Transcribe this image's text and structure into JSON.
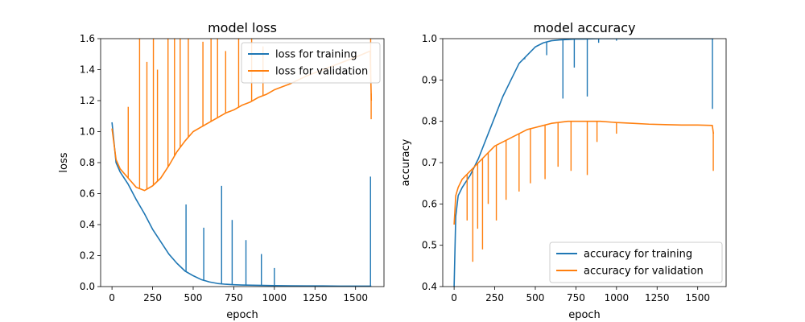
{
  "chart_data": [
    {
      "type": "line",
      "title": "model loss",
      "xlabel": "epoch",
      "ylabel": "loss",
      "xlim": [
        -70,
        1675
      ],
      "ylim": [
        0.0,
        1.6
      ],
      "xticks": [
        0,
        250,
        500,
        750,
        1000,
        1250,
        1500
      ],
      "yticks": [
        0.0,
        0.2,
        0.4,
        0.6,
        0.8,
        1.0,
        1.2,
        1.4,
        1.6
      ],
      "xtick_labels": [
        "0",
        "250",
        "500",
        "750",
        "1000",
        "1250",
        "1500"
      ],
      "ytick_labels": [
        "0.0",
        "0.2",
        "0.4",
        "0.6",
        "0.8",
        "1.0",
        "1.2",
        "1.4",
        "1.6"
      ],
      "legend_position": "top-right",
      "grid": false,
      "series": [
        {
          "name": "loss for training",
          "color": "#1f77b4",
          "x": [
            0,
            25,
            50,
            100,
            150,
            200,
            250,
            300,
            350,
            400,
            450,
            500,
            550,
            600,
            650,
            700,
            750,
            800,
            900,
            1000,
            1100,
            1200,
            1300,
            1400,
            1500,
            1590,
            1597
          ],
          "y": [
            1.06,
            0.8,
            0.74,
            0.66,
            0.56,
            0.47,
            0.37,
            0.29,
            0.21,
            0.15,
            0.1,
            0.07,
            0.045,
            0.03,
            0.02,
            0.015,
            0.012,
            0.01,
            0.008,
            0.006,
            0.005,
            0.004,
            0.004,
            0.003,
            0.003,
            0.003,
            0.003
          ],
          "spikes": [
            {
              "x": 456,
              "y": 0.53
            },
            {
              "x": 565,
              "y": 0.38
            },
            {
              "x": 675,
              "y": 0.65
            },
            {
              "x": 740,
              "y": 0.43
            },
            {
              "x": 825,
              "y": 0.3
            },
            {
              "x": 920,
              "y": 0.21
            },
            {
              "x": 1000,
              "y": 0.12
            },
            {
              "x": 1592,
              "y": 0.71
            }
          ]
        },
        {
          "name": "loss for validation",
          "color": "#ff7f0e",
          "x": [
            0,
            25,
            50,
            100,
            150,
            200,
            250,
            300,
            350,
            400,
            450,
            500,
            550,
            600,
            650,
            700,
            750,
            800,
            850,
            900,
            950,
            1000,
            1100,
            1200,
            1300,
            1400,
            1500,
            1590,
            1597
          ],
          "y": [
            1.02,
            0.82,
            0.76,
            0.7,
            0.64,
            0.62,
            0.65,
            0.7,
            0.78,
            0.87,
            0.94,
            1.0,
            1.03,
            1.06,
            1.09,
            1.12,
            1.14,
            1.17,
            1.19,
            1.22,
            1.24,
            1.27,
            1.31,
            1.36,
            1.4,
            1.44,
            1.48,
            1.52,
            1.2
          ],
          "spikes": [
            {
              "x": 100,
              "y": 1.16
            },
            {
              "x": 170,
              "y": 1.6
            },
            {
              "x": 215,
              "y": 1.45
            },
            {
              "x": 255,
              "y": 1.6
            },
            {
              "x": 280,
              "y": 1.4
            },
            {
              "x": 345,
              "y": 1.6
            },
            {
              "x": 385,
              "y": 1.6
            },
            {
              "x": 420,
              "y": 1.6
            },
            {
              "x": 470,
              "y": 1.6
            },
            {
              "x": 560,
              "y": 1.58
            },
            {
              "x": 610,
              "y": 1.6
            },
            {
              "x": 650,
              "y": 1.6
            },
            {
              "x": 700,
              "y": 1.52
            },
            {
              "x": 780,
              "y": 1.6
            },
            {
              "x": 860,
              "y": 1.6
            },
            {
              "x": 930,
              "y": 1.55
            },
            {
              "x": 1593,
              "y": 1.6
            },
            {
              "x": 1596,
              "y": 1.08
            }
          ]
        }
      ]
    },
    {
      "type": "line",
      "title": "model accuracy",
      "xlabel": "epoch",
      "ylabel": "accuracy",
      "xlim": [
        -70,
        1675
      ],
      "ylim": [
        0.4,
        1.0
      ],
      "xticks": [
        0,
        250,
        500,
        750,
        1000,
        1250,
        1500
      ],
      "yticks": [
        0.4,
        0.5,
        0.6,
        0.7,
        0.8,
        0.9,
        1.0
      ],
      "xtick_labels": [
        "0",
        "250",
        "500",
        "750",
        "1000",
        "1250",
        "1500"
      ],
      "ytick_labels": [
        "0.4",
        "0.5",
        "0.6",
        "0.7",
        "0.8",
        "0.9",
        "1.0"
      ],
      "legend_position": "lower-right",
      "grid": false,
      "series": [
        {
          "name": "accuracy for training",
          "color": "#1f77b4",
          "x": [
            0,
            10,
            25,
            50,
            100,
            150,
            200,
            250,
            300,
            350,
            400,
            450,
            500,
            550,
            600,
            650,
            700,
            750,
            800,
            900,
            1000,
            1100,
            1200,
            1300,
            1400,
            1500,
            1590,
            1597
          ],
          "y": [
            0.4,
            0.57,
            0.62,
            0.64,
            0.67,
            0.71,
            0.76,
            0.81,
            0.86,
            0.9,
            0.94,
            0.96,
            0.98,
            0.99,
            0.995,
            0.997,
            0.998,
            0.999,
            0.999,
            1.0,
            1.0,
            1.0,
            1.0,
            1.0,
            1.0,
            1.0,
            1.0,
            1.0
          ],
          "spikes": [
            {
              "x": 435,
              "y": 0.95
            },
            {
              "x": 570,
              "y": 0.96
            },
            {
              "x": 670,
              "y": 0.855
            },
            {
              "x": 740,
              "y": 0.93
            },
            {
              "x": 820,
              "y": 0.86
            },
            {
              "x": 890,
              "y": 0.99
            },
            {
              "x": 1000,
              "y": 0.995
            },
            {
              "x": 1591,
              "y": 0.83
            }
          ]
        },
        {
          "name": "accuracy for validation",
          "color": "#ff7f0e",
          "x": [
            0,
            10,
            25,
            50,
            100,
            150,
            200,
            250,
            300,
            350,
            400,
            450,
            500,
            550,
            600,
            700,
            800,
            900,
            1000,
            1100,
            1200,
            1300,
            1400,
            1500,
            1590,
            1597
          ],
          "y": [
            0.55,
            0.62,
            0.64,
            0.66,
            0.68,
            0.7,
            0.72,
            0.74,
            0.75,
            0.76,
            0.77,
            0.78,
            0.785,
            0.79,
            0.795,
            0.8,
            0.8,
            0.8,
            0.797,
            0.795,
            0.793,
            0.792,
            0.791,
            0.791,
            0.79,
            0.77
          ],
          "spikes": [
            {
              "x": 80,
              "y": 0.56
            },
            {
              "x": 115,
              "y": 0.46
            },
            {
              "x": 145,
              "y": 0.54
            },
            {
              "x": 175,
              "y": 0.49
            },
            {
              "x": 210,
              "y": 0.6
            },
            {
              "x": 260,
              "y": 0.56
            },
            {
              "x": 320,
              "y": 0.61
            },
            {
              "x": 400,
              "y": 0.63
            },
            {
              "x": 470,
              "y": 0.65
            },
            {
              "x": 560,
              "y": 0.66
            },
            {
              "x": 640,
              "y": 0.69
            },
            {
              "x": 720,
              "y": 0.68
            },
            {
              "x": 820,
              "y": 0.67
            },
            {
              "x": 880,
              "y": 0.75
            },
            {
              "x": 1000,
              "y": 0.77
            },
            {
              "x": 1596,
              "y": 0.68
            }
          ]
        }
      ]
    }
  ]
}
